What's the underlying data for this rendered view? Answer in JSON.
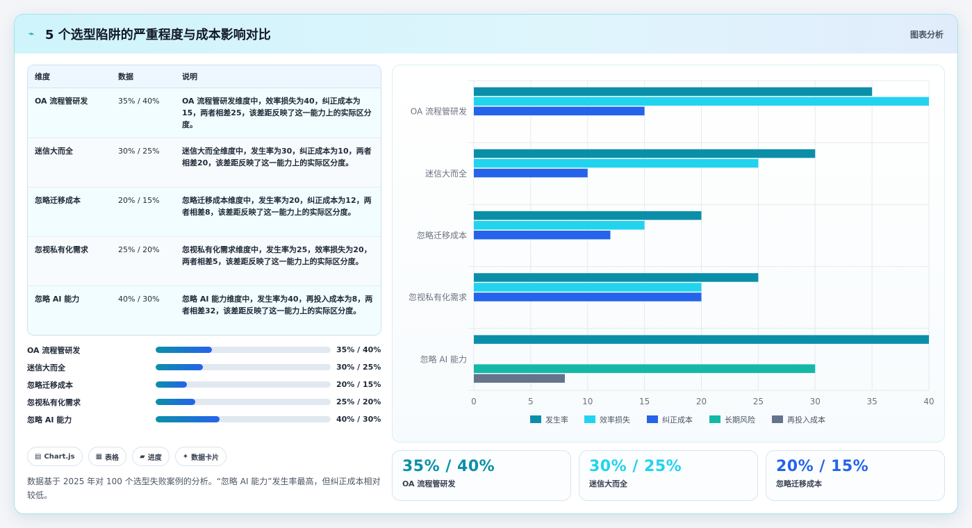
{
  "header": {
    "title": "5 个选型陷阱的严重程度与成本影响对比",
    "tag": "图表分析",
    "icon": "bolt-icon"
  },
  "table": {
    "columns": [
      "维度",
      "数据",
      "说明"
    ],
    "rows": [
      {
        "dim": "OA 流程管研发",
        "data": "35% / 40%",
        "desc": "OA 流程管研发维度中，效率损失为40，纠正成本为15，两者相差25，该差距反映了这一能力上的实际区分度。"
      },
      {
        "dim": "迷信大而全",
        "data": "30% / 25%",
        "desc": "迷信大而全维度中，发生率为30，纠正成本为10，两者相差20，该差距反映了这一能力上的实际区分度。"
      },
      {
        "dim": "忽略迁移成本",
        "data": "20% / 15%",
        "desc": "忽略迁移成本维度中，发生率为20，纠正成本为12，两者相差8，该差距反映了这一能力上的实际区分度。"
      },
      {
        "dim": "忽视私有化需求",
        "data": "25% / 20%",
        "desc": "忽视私有化需求维度中，发生率为25，效率损失为20，两者相差5，该差距反映了这一能力上的实际区分度。"
      },
      {
        "dim": "忽略 AI 能力",
        "data": "40% / 30%",
        "desc": "忽略 AI 能力维度中，发生率为40，再投入成本为8，两者相差32，该差距反映了这一能力上的实际区分度。"
      }
    ]
  },
  "progress": [
    {
      "label": "OA 流程管研发",
      "value": "35% / 40%",
      "fraction": 0.32
    },
    {
      "label": "迷信大而全",
      "value": "30% / 25%",
      "fraction": 0.27
    },
    {
      "label": "忽略迁移成本",
      "value": "20% / 15%",
      "fraction": 0.18
    },
    {
      "label": "忽视私有化需求",
      "value": "25% / 20%",
      "fraction": 0.225
    },
    {
      "label": "忽略 AI 能力",
      "value": "40% / 30%",
      "fraction": 0.365
    }
  ],
  "chips": [
    {
      "icon": "chart-icon",
      "glyph": "▤",
      "label": "Chart.js"
    },
    {
      "icon": "table-icon",
      "glyph": "▦",
      "label": "表格"
    },
    {
      "icon": "folder-icon",
      "glyph": "▰",
      "label": "进度"
    },
    {
      "icon": "sparkle-icon",
      "glyph": "✦",
      "label": "数据卡片"
    }
  ],
  "note": "数据基于 2025 年对 100 个选型失败案例的分析。“忽略 AI 能力”发生率最高，但纠正成本相对较低。",
  "stats": [
    {
      "value": "35% / 40%",
      "label": "OA 流程管研发",
      "color": "#0b8fa8"
    },
    {
      "value": "30% / 25%",
      "label": "迷信大而全",
      "color": "#22d3ee"
    },
    {
      "value": "20% / 15%",
      "label": "忽略迁移成本",
      "color": "#2563eb"
    }
  ],
  "chart_data": {
    "type": "bar",
    "orientation": "horizontal",
    "categories": [
      "OA 流程管研发",
      "迷信大而全",
      "忽略迁移成本",
      "忽视私有化需求",
      "忽略 AI 能力"
    ],
    "series": [
      {
        "name": "发生率",
        "color": "#0b8fa8",
        "values": [
          35,
          30,
          20,
          25,
          40
        ]
      },
      {
        "name": "效率损失",
        "color": "#22d3ee",
        "values": [
          40,
          25,
          15,
          20,
          null
        ]
      },
      {
        "name": "纠正成本",
        "color": "#2563eb",
        "values": [
          15,
          10,
          12,
          20,
          null
        ]
      },
      {
        "name": "长期风险",
        "color": "#14b8a6",
        "values": [
          null,
          null,
          null,
          null,
          30
        ]
      },
      {
        "name": "再投入成本",
        "color": "#64748b",
        "values": [
          null,
          null,
          null,
          null,
          8
        ]
      }
    ],
    "xlim": [
      0,
      40
    ],
    "xticks": [
      0,
      5,
      10,
      15,
      20,
      25,
      30,
      35,
      40
    ],
    "grid": true,
    "legend": "bottom"
  }
}
